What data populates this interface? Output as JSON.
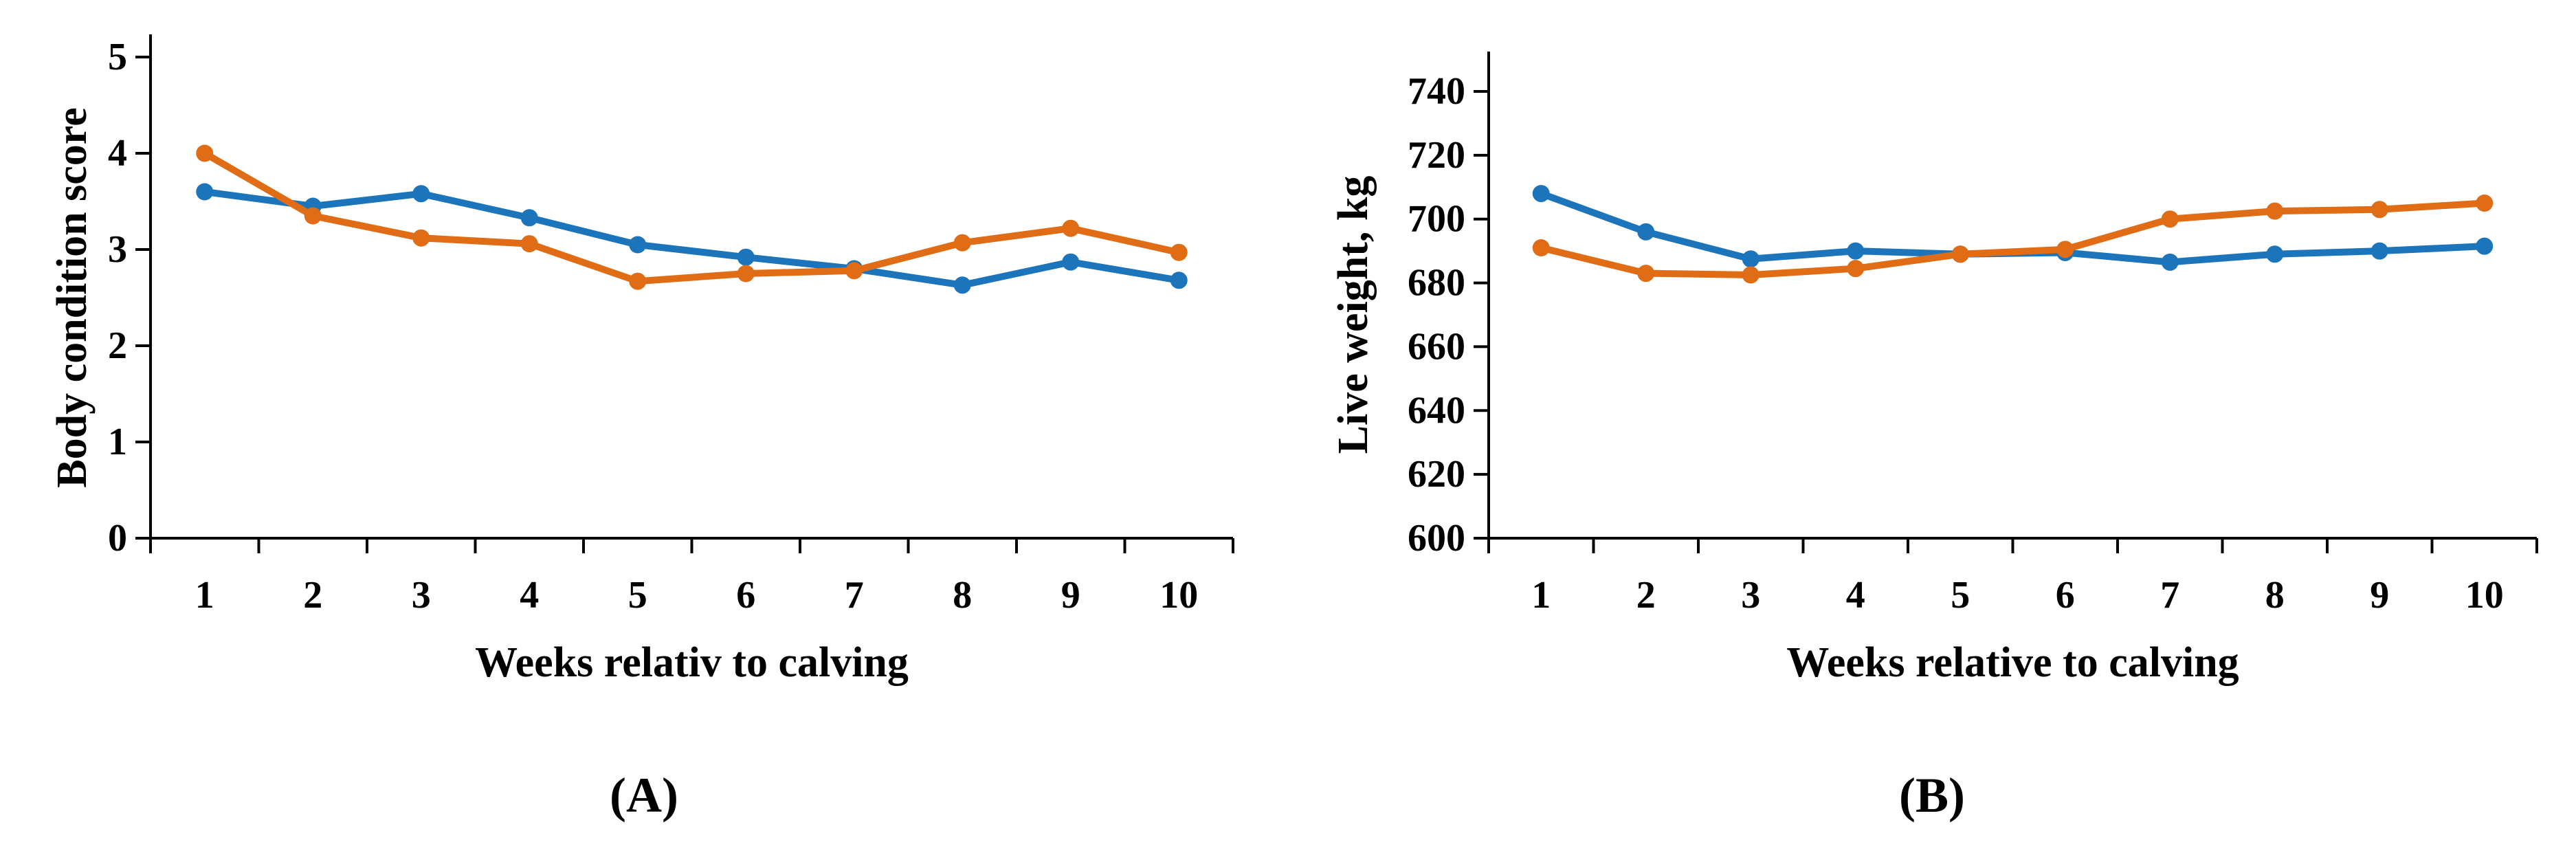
{
  "figure": {
    "background": "#ffffff",
    "axis_color": "#000000",
    "series_colors": {
      "blue": "#1c74bb",
      "orange": "#e06d15"
    }
  },
  "chart_data": [
    {
      "panel": "A",
      "type": "line",
      "title": "",
      "caption": "(A)",
      "xlabel": "Weeks relativ to calving",
      "ylabel": "Body condition score",
      "x": [
        1,
        2,
        3,
        4,
        5,
        6,
        7,
        8,
        9,
        10
      ],
      "xticklabels": [
        "1",
        "2",
        "3",
        "4",
        "5",
        "6",
        "7",
        "8",
        "9",
        "10"
      ],
      "ylim": [
        0,
        5
      ],
      "yticks": [
        0,
        1,
        2,
        3,
        4,
        5
      ],
      "grid": false,
      "legend": "none",
      "marker": "circle",
      "series": [
        {
          "name": "blue-series",
          "color": "#1c74bb",
          "values": [
            3.6,
            3.45,
            3.58,
            3.33,
            3.05,
            2.92,
            2.8,
            2.63,
            2.87,
            2.68
          ]
        },
        {
          "name": "orange-series",
          "color": "#e06d15",
          "values": [
            4.0,
            3.35,
            3.12,
            3.06,
            2.67,
            2.75,
            2.78,
            3.07,
            3.22,
            2.97
          ]
        }
      ]
    },
    {
      "panel": "B",
      "type": "line",
      "title": "",
      "caption": "(B)",
      "xlabel": "Weeks relative to calving",
      "ylabel": "Live weight, kg",
      "x": [
        1,
        2,
        3,
        4,
        5,
        6,
        7,
        8,
        9,
        10
      ],
      "xticklabels": [
        "1",
        "2",
        "3",
        "4",
        "5",
        "6",
        "7",
        "8",
        "9",
        "10"
      ],
      "ylim": [
        600,
        740
      ],
      "yticks": [
        600,
        620,
        640,
        660,
        680,
        700,
        720,
        740
      ],
      "grid": false,
      "legend": "none",
      "marker": "circle",
      "series": [
        {
          "name": "blue-series",
          "color": "#1c74bb",
          "values": [
            708,
            696,
            687.5,
            690,
            689,
            689.5,
            686.5,
            689,
            690,
            691.5
          ]
        },
        {
          "name": "orange-series",
          "color": "#e06d15",
          "values": [
            691,
            683,
            682.5,
            684.5,
            689,
            690.5,
            700,
            702.5,
            703,
            705
          ]
        }
      ]
    }
  ]
}
